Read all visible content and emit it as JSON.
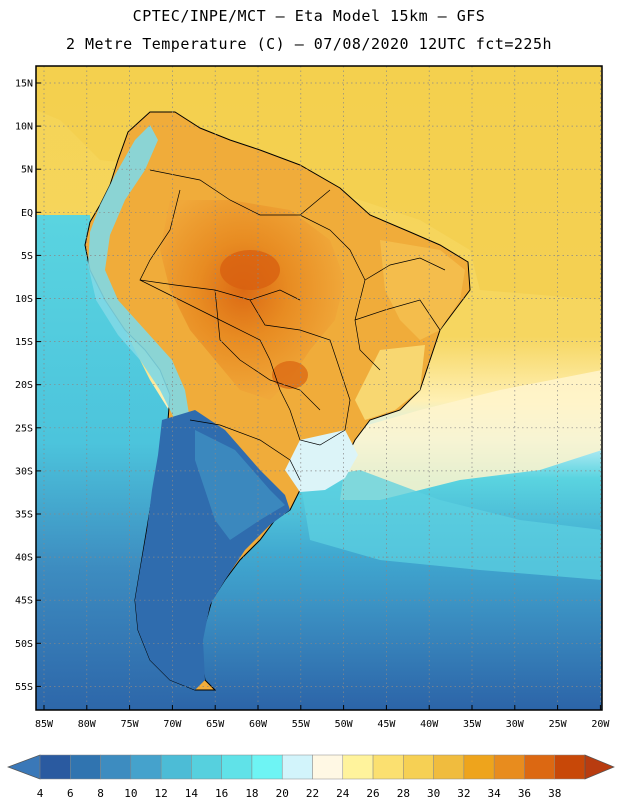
{
  "title_line1": "CPTEC/INPE/MCT –  Eta Model 15km – GFS",
  "title_line2": "2 Metre Temperature (C) – 07/08/2020 12UTC fct=225h",
  "lat_labels": [
    "15N",
    "10N",
    "5N",
    "EQ",
    "5S",
    "10S",
    "15S",
    "20S",
    "25S",
    "30S",
    "35S",
    "40S",
    "45S",
    "50S",
    "55S"
  ],
  "lon_labels": [
    "85W",
    "80W",
    "75W",
    "70W",
    "65W",
    "60W",
    "55W",
    "50W",
    "45W",
    "40W",
    "35W",
    "30W",
    "25W",
    "20W"
  ],
  "colorbar": {
    "values": [
      "4",
      "6",
      "8",
      "10",
      "12",
      "14",
      "16",
      "18",
      "20",
      "22",
      "24",
      "26",
      "28",
      "30",
      "32",
      "34",
      "36",
      "38"
    ],
    "colors": [
      "#2a5aa0",
      "#3074b0",
      "#3d8cc0",
      "#45a2cc",
      "#4cbcd6",
      "#56d0de",
      "#60e2e8",
      "#6ef4f4",
      "#d2f4fb",
      "#fff8e4",
      "#fff39c",
      "#fbe070",
      "#f6d054",
      "#f0bc3e",
      "#eea41c",
      "#e88c1e",
      "#dc6812",
      "#c84808"
    ],
    "low_color": "#3a78b8",
    "high_color": "#b83c10"
  },
  "map_colors": {
    "ocean_warm": "#f5d455",
    "ocean_mild": "#fff3b0",
    "ocean_cool": "#5ad4e0",
    "ocean_cold": "#3a9cc8",
    "ocean_coldest": "#2c64a8",
    "land_hot": "#e58a22",
    "land_warm": "#f0ac3a",
    "land_mild": "#f8d46a",
    "andes_cool": "#7fd8e6",
    "patagonia": "#2f6cae",
    "border": "#000000"
  }
}
